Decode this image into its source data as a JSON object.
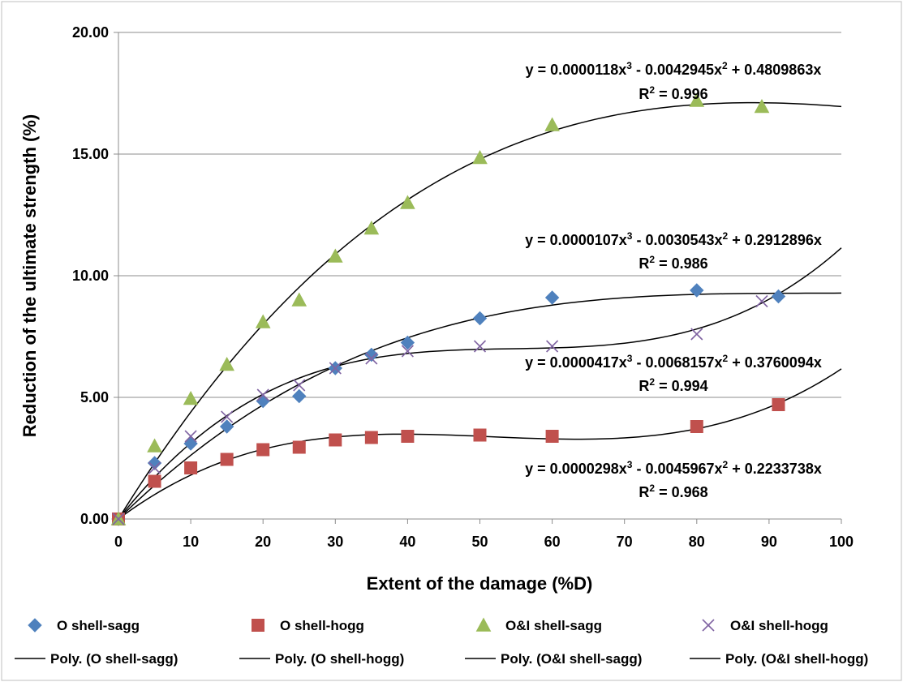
{
  "chart_data": {
    "type": "scatter",
    "xlabel": "Extent of the damage (%D)",
    "ylabel": "Reduction of the ultimate strength (%)",
    "xlim": [
      0,
      100
    ],
    "ylim": [
      0,
      20
    ],
    "x_ticks": [
      "0",
      "10",
      "20",
      "30",
      "40",
      "50",
      "60",
      "70",
      "80",
      "90",
      "100"
    ],
    "y_ticks": [
      "0.00",
      "5.00",
      "10.00",
      "15.00",
      "20.00"
    ],
    "grid": "horizontal",
    "legend_position": "bottom",
    "series": [
      {
        "name": "O shell-sagg",
        "marker": "diamond",
        "color": "#4F81BD",
        "x": [
          0,
          5,
          10,
          15,
          20,
          25,
          30,
          35,
          40,
          50,
          60,
          80,
          91.3
        ],
        "y": [
          0,
          2.3,
          3.1,
          3.8,
          4.85,
          5.05,
          6.2,
          6.75,
          7.25,
          8.25,
          9.1,
          9.4,
          9.15
        ],
        "trend": {
          "name": "Poly. (O shell-sagg)",
          "coeffs": [
            1.07e-05,
            -0.0030543,
            0.2912896
          ],
          "equation": "y = 0.0000107x³ - 0.0030543x² + 0.2912896x",
          "r2": "R² = 0.986"
        }
      },
      {
        "name": "O shell-hogg",
        "marker": "square",
        "color": "#C0504D",
        "x": [
          0,
          5,
          10,
          15,
          20,
          25,
          30,
          35,
          40,
          50,
          60,
          80,
          91.3
        ],
        "y": [
          0,
          1.55,
          2.1,
          2.45,
          2.85,
          2.95,
          3.25,
          3.35,
          3.4,
          3.45,
          3.4,
          3.8,
          4.7
        ],
        "trend": {
          "name": "Poly. (O shell-hogg)",
          "coeffs": [
            2.98e-05,
            -0.0045967,
            0.2233738
          ],
          "equation": "y = 0.0000298x³ - 0.0045967x² + 0.2233738x",
          "r2": "R² = 0.968"
        }
      },
      {
        "name": "O&I shell-sagg",
        "marker": "triangle",
        "color": "#9BBB59",
        "x": [
          0,
          5,
          10,
          15,
          20,
          25,
          30,
          35,
          40,
          50,
          60,
          80,
          89
        ],
        "y": [
          0,
          3.0,
          4.95,
          6.35,
          8.1,
          9.0,
          10.8,
          11.95,
          13.0,
          14.85,
          16.2,
          17.2,
          16.95
        ],
        "trend": {
          "name": "Poly. (O&I shell-sagg)",
          "coeffs": [
            1.18e-05,
            -0.0042945,
            0.4809863
          ],
          "equation": "y = 0.0000118x³ - 0.0042945x² + 0.4809863x",
          "r2": "R² = 0.996"
        }
      },
      {
        "name": "O&I shell-hogg",
        "marker": "x",
        "color": "#8064A2",
        "x": [
          0,
          5,
          10,
          15,
          20,
          25,
          30,
          35,
          40,
          50,
          60,
          80,
          89
        ],
        "y": [
          0,
          2.1,
          3.4,
          4.2,
          5.1,
          5.5,
          6.2,
          6.6,
          6.9,
          7.1,
          7.1,
          7.6,
          8.95
        ],
        "trend": {
          "name": "Poly. (O&I shell-hogg)",
          "coeffs": [
            4.17e-05,
            -0.0068157,
            0.3760094
          ],
          "equation": "y = 0.0000417x³ - 0.0068157x² + 0.3760094x",
          "r2": "R² = 0.994"
        }
      }
    ]
  }
}
